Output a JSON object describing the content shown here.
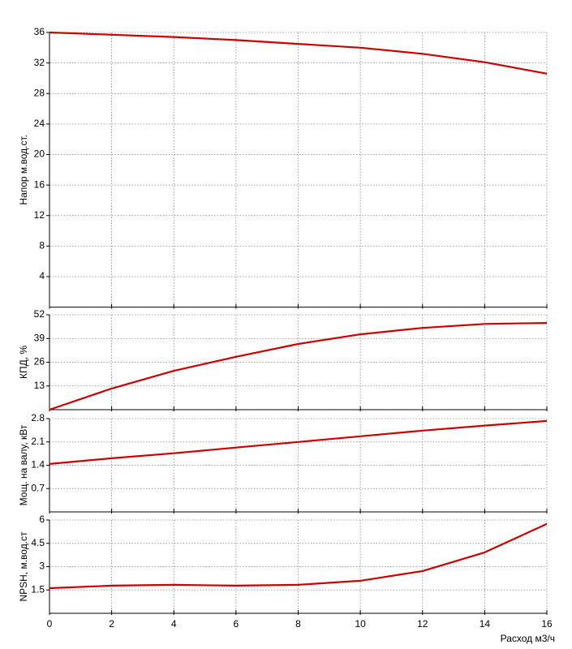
{
  "chart_data": [
    {
      "type": "line",
      "y_label": "Напор м.вод.ст.",
      "xlim": [
        0,
        16
      ],
      "xticks": [
        0,
        2,
        4,
        6,
        8,
        10,
        12,
        14,
        16
      ],
      "ylim": [
        0,
        36
      ],
      "yticks": [
        4,
        8,
        12,
        16,
        20,
        24,
        28,
        32,
        36
      ],
      "grid": true,
      "x": [
        0,
        2,
        4,
        6,
        8,
        10,
        12,
        14,
        16
      ],
      "series": [
        {
          "color": "#cc0000",
          "values": [
            36,
            35.7,
            35.4,
            35.0,
            34.5,
            34.0,
            33.2,
            32.1,
            30.6
          ]
        }
      ]
    },
    {
      "type": "line",
      "y_label": "КПД, %",
      "xlim": [
        0,
        16
      ],
      "xticks": [
        0,
        2,
        4,
        6,
        8,
        10,
        12,
        14,
        16
      ],
      "ylim": [
        0,
        52
      ],
      "yticks": [
        13,
        26,
        39,
        52
      ],
      "grid": true,
      "x": [
        0,
        2,
        4,
        6,
        8,
        10,
        12,
        14,
        16
      ],
      "series": [
        {
          "color": "#cc0000",
          "values": [
            0,
            11.6,
            21.3,
            29,
            36,
            41.3,
            44.8,
            47,
            47.5
          ]
        }
      ]
    },
    {
      "type": "line",
      "y_label": "Мощ. на валу, кВт",
      "xlim": [
        0,
        16
      ],
      "xticks": [
        0,
        2,
        4,
        6,
        8,
        10,
        12,
        14,
        16
      ],
      "ylim": [
        0,
        2.8
      ],
      "yticks": [
        0.7,
        1.4,
        2.1,
        2.8
      ],
      "grid": true,
      "x": [
        0,
        2,
        4,
        6,
        8,
        10,
        12,
        14,
        16
      ],
      "series": [
        {
          "color": "#cc0000",
          "values": [
            1.44,
            1.61,
            1.76,
            1.93,
            2.1,
            2.27,
            2.44,
            2.59,
            2.73
          ]
        }
      ]
    },
    {
      "type": "line",
      "y_label": "NPSH, м.вод.ст",
      "x_label": "Расход м3/ч",
      "xlim": [
        0,
        16
      ],
      "xticks": [
        0,
        2,
        4,
        6,
        8,
        10,
        12,
        14,
        16
      ],
      "ylim": [
        0,
        6
      ],
      "yticks": [
        1.5,
        3,
        4.5,
        6
      ],
      "grid": true,
      "x": [
        0,
        2,
        4,
        6,
        8,
        10,
        12,
        14,
        16
      ],
      "series": [
        {
          "color": "#cc0000",
          "values": [
            1.62,
            1.78,
            1.83,
            1.78,
            1.83,
            2.09,
            2.72,
            3.92,
            5.75
          ]
        }
      ]
    }
  ]
}
